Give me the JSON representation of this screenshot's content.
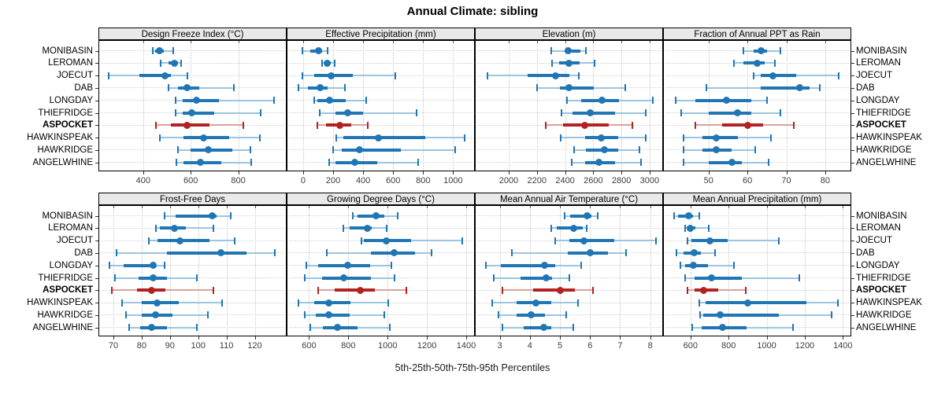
{
  "title": "Annual Climate: sibling",
  "caption": "5th-25th-50th-75th-95th Percentiles",
  "chart_data": {
    "type": "dotplot",
    "subtype": "lattice-percentile-whisker",
    "title": "Annual Climate: sibling",
    "caption": "5th-25th-50th-75th-95th Percentiles",
    "percentiles": [
      5,
      25,
      50,
      75,
      95
    ],
    "stations": [
      "MONIBASIN",
      "LEROMAN",
      "JOECUT",
      "DAB",
      "LONGDAY",
      "THIEFRIDGE",
      "ASPOCKET",
      "HAWKINSPEAK",
      "HAWKRIDGE",
      "ANGELWHINE"
    ],
    "highlight_station": "ASPOCKET",
    "colors": {
      "series_main": "#2076B4",
      "series_light": "#9DC4E0",
      "highlight_main": "#B22222",
      "highlight_light": "#DCA29E",
      "strip_bg": "#e9e9e9",
      "grid": "#c6c6c6"
    },
    "layout": {
      "rows": 2,
      "cols": 4,
      "grid": "dotted",
      "legend": "none",
      "y_labels_left": true,
      "y_labels_right": true
    },
    "panels": [
      {
        "title": "Design Freeze Index (°C)",
        "xlim": [
          215,
          1000
        ],
        "ticks": [
          400,
          600,
          800
        ],
        "values": [
          [
            440,
            450,
            470,
            485,
            525
          ],
          [
            475,
            505,
            530,
            545,
            560
          ],
          [
            255,
            385,
            490,
            515,
            585
          ],
          [
            505,
            545,
            585,
            635,
            780
          ],
          [
            535,
            565,
            625,
            720,
            950
          ],
          [
            535,
            565,
            605,
            700,
            895
          ],
          [
            455,
            515,
            585,
            680,
            820
          ],
          [
            470,
            570,
            655,
            760,
            890
          ],
          [
            545,
            600,
            675,
            775,
            850
          ],
          [
            540,
            570,
            640,
            730,
            855
          ]
        ]
      },
      {
        "title": "Effective Precipitation (mm)",
        "xlim": [
          -105,
          1140
        ],
        "ticks": [
          0,
          200,
          400,
          600,
          800,
          1000
        ],
        "values": [
          [
            -5,
            45,
            100,
            125,
            165
          ],
          [
            125,
            140,
            160,
            185,
            210
          ],
          [
            -5,
            75,
            185,
            330,
            615
          ],
          [
            -30,
            30,
            115,
            165,
            280
          ],
          [
            75,
            95,
            175,
            285,
            420
          ],
          [
            110,
            215,
            295,
            400,
            755
          ],
          [
            95,
            155,
            245,
            320,
            430
          ],
          [
            220,
            270,
            500,
            815,
            1075
          ],
          [
            200,
            255,
            375,
            650,
            1015
          ],
          [
            175,
            215,
            345,
            495,
            765
          ]
        ]
      },
      {
        "title": "Elevation (m)",
        "xlim": [
          1765,
          3090
        ],
        "ticks": [
          2000,
          2200,
          2400,
          2600,
          2800,
          3000
        ],
        "values": [
          [
            2300,
            2395,
            2420,
            2510,
            2545
          ],
          [
            2310,
            2360,
            2425,
            2505,
            2610
          ],
          [
            1850,
            2135,
            2335,
            2430,
            2500
          ],
          [
            2200,
            2365,
            2430,
            2605,
            2825
          ],
          [
            2415,
            2515,
            2665,
            2785,
            3025
          ],
          [
            2375,
            2450,
            2580,
            2755,
            2970
          ],
          [
            2260,
            2385,
            2540,
            2710,
            2880
          ],
          [
            2370,
            2540,
            2655,
            2775,
            2970
          ],
          [
            2465,
            2550,
            2680,
            2775,
            2930
          ],
          [
            2445,
            2540,
            2640,
            2755,
            2940
          ]
        ]
      },
      {
        "title": "Fraction of Annual PPT as Rain",
        "xlim": [
          38.5,
          86.5
        ],
        "ticks": [
          50,
          60,
          70,
          80
        ],
        "values": [
          [
            59,
            61.5,
            63.5,
            65,
            68.5
          ],
          [
            56.5,
            59,
            62.5,
            64.5,
            67
          ],
          [
            61.5,
            63.5,
            66.5,
            72.5,
            83.5
          ],
          [
            49.5,
            63.5,
            73.5,
            76,
            78.5
          ],
          [
            41.5,
            46.5,
            54.5,
            61,
            65
          ],
          [
            43,
            50,
            57.5,
            61,
            68.5
          ],
          [
            46.5,
            53.5,
            60,
            64,
            72
          ],
          [
            43.5,
            48.5,
            52,
            57.5,
            66
          ],
          [
            43.5,
            48.5,
            52,
            56,
            62
          ],
          [
            43.5,
            50,
            56,
            58.5,
            65.5
          ]
        ]
      },
      {
        "title": "Frost-Free Days",
        "xlim": [
          65,
          131
        ],
        "ticks": [
          70,
          80,
          90,
          100,
          110,
          120
        ],
        "values": [
          [
            88,
            92,
            105,
            106.5,
            111.5
          ],
          [
            85,
            86.5,
            91.5,
            95.5,
            105.5
          ],
          [
            82.5,
            85.5,
            93.5,
            104,
            113
          ],
          [
            71,
            89,
            108,
            117,
            127
          ],
          [
            68.5,
            73.5,
            84,
            85,
            88
          ],
          [
            70.5,
            79,
            84,
            89,
            99.5
          ],
          [
            69.5,
            78.5,
            83.5,
            88.5,
            105.5
          ],
          [
            73,
            80,
            85.5,
            93,
            108.5
          ],
          [
            74.5,
            80,
            85,
            91,
            103.5
          ],
          [
            75.5,
            79.5,
            83.5,
            89,
            99.5
          ]
        ]
      },
      {
        "title": "Growing Degree Days (°C)",
        "xlim": [
          490,
          1440
        ],
        "ticks": [
          600,
          800,
          1000,
          1200,
          1400
        ],
        "values": [
          [
            823,
            845,
            940,
            985,
            1050
          ],
          [
            775,
            805,
            895,
            920,
            995
          ],
          [
            865,
            880,
            995,
            1120,
            1380
          ],
          [
            690,
            915,
            1035,
            1140,
            1225
          ],
          [
            585,
            645,
            795,
            910,
            1020
          ],
          [
            580,
            665,
            775,
            915,
            1035
          ],
          [
            645,
            730,
            860,
            935,
            1095
          ],
          [
            545,
            625,
            700,
            810,
            1005
          ],
          [
            580,
            635,
            700,
            805,
            985
          ],
          [
            605,
            670,
            745,
            845,
            1010
          ]
        ]
      },
      {
        "title": "Mean Annual Air Temperature (°C)",
        "xlim": [
          2.2,
          8.4
        ],
        "ticks": [
          3,
          4,
          5,
          6,
          7,
          8
        ],
        "values": [
          [
            5.15,
            5.35,
            5.9,
            6.05,
            6.25
          ],
          [
            4.7,
            4.9,
            5.45,
            5.75,
            5.9
          ],
          [
            4.85,
            5.3,
            5.8,
            6.8,
            8.2
          ],
          [
            3.4,
            5.25,
            6.0,
            6.6,
            7.2
          ],
          [
            2.55,
            3.05,
            4.5,
            4.85,
            5.7
          ],
          [
            2.8,
            3.7,
            4.55,
            4.75,
            5.3
          ],
          [
            3.1,
            4.1,
            5.0,
            5.5,
            6.1
          ],
          [
            2.75,
            3.55,
            4.2,
            4.7,
            5.6
          ],
          [
            2.95,
            3.55,
            4.05,
            4.5,
            5.2
          ],
          [
            3.1,
            3.8,
            4.45,
            4.7,
            5.45
          ]
        ]
      },
      {
        "title": "Mean Annual Precipitation (mm)",
        "xlim": [
          460,
          1440
        ],
        "ticks": [
          600,
          800,
          1000,
          1200,
          1400
        ],
        "values": [
          [
            515,
            535,
            590,
            615,
            645
          ],
          [
            570,
            580,
            600,
            625,
            695
          ],
          [
            585,
            605,
            700,
            795,
            1065
          ],
          [
            525,
            565,
            620,
            655,
            730
          ],
          [
            545,
            570,
            615,
            690,
            830
          ],
          [
            570,
            620,
            710,
            870,
            1170
          ],
          [
            585,
            620,
            670,
            745,
            890
          ],
          [
            645,
            680,
            900,
            1210,
            1375
          ],
          [
            650,
            665,
            755,
            1065,
            1340
          ],
          [
            610,
            660,
            770,
            895,
            1140
          ]
        ]
      }
    ]
  }
}
